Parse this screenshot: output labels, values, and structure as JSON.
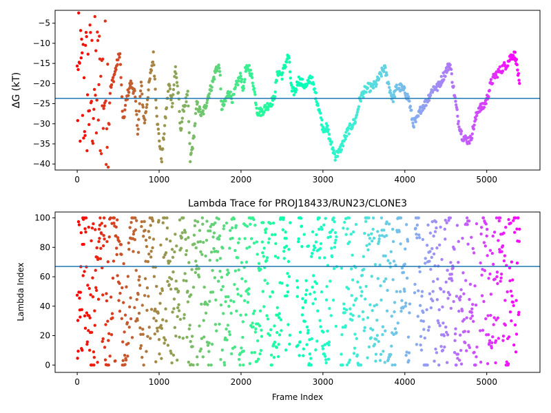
{
  "chart_data": [
    {
      "type": "scatter",
      "title": "",
      "xlabel": "",
      "ylabel": "ΔG (kT)",
      "xlim": [
        -270,
        5650
      ],
      "ylim": [
        -41.5,
        -1.8
      ],
      "xticks": [
        0,
        1000,
        2000,
        3000,
        4000,
        5000
      ],
      "xtick_labels": [
        "0",
        "1000",
        "2000",
        "3000",
        "4000",
        "5000"
      ],
      "yticks": [
        -40,
        -35,
        -30,
        -25,
        -20,
        -15,
        -10,
        -5
      ],
      "ytick_labels": [
        "−40",
        "−35",
        "−30",
        "−25",
        "−20",
        "−15",
        "−10",
        "−5"
      ],
      "hline": -23.7,
      "colormap": "rainbow (early frames red → late frames violet)",
      "frame_count": 5400,
      "trace_points": [
        [
          0,
          -20
        ],
        [
          20,
          -12
        ],
        [
          40,
          -28
        ],
        [
          60,
          -8
        ],
        [
          80,
          -18
        ],
        [
          100,
          -35
        ],
        [
          120,
          -5
        ],
        [
          140,
          -25
        ],
        [
          160,
          -15
        ],
        [
          180,
          -38
        ],
        [
          200,
          -10
        ],
        [
          220,
          -22
        ],
        [
          240,
          -30
        ],
        [
          260,
          -12
        ],
        [
          280,
          -6
        ],
        [
          300,
          -18
        ],
        [
          320,
          -28
        ],
        [
          340,
          -35
        ],
        [
          360,
          -22
        ],
        [
          380,
          -18
        ],
        [
          400,
          -22
        ],
        [
          450,
          -18
        ],
        [
          500,
          -14
        ],
        [
          520,
          -12
        ],
        [
          560,
          -30
        ],
        [
          600,
          -24
        ],
        [
          650,
          -20
        ],
        [
          700,
          -22
        ],
        [
          740,
          -32
        ],
        [
          780,
          -20
        ],
        [
          820,
          -30
        ],
        [
          880,
          -20
        ],
        [
          930,
          -13
        ],
        [
          980,
          -30
        ],
        [
          1030,
          -39
        ],
        [
          1080,
          -28
        ],
        [
          1120,
          -20
        ],
        [
          1160,
          -25
        ],
        [
          1200,
          -16
        ],
        [
          1240,
          -24
        ],
        [
          1260,
          -32
        ],
        [
          1300,
          -26
        ],
        [
          1350,
          -23
        ],
        [
          1380,
          -39
        ],
        [
          1420,
          -34
        ],
        [
          1460,
          -25
        ],
        [
          1520,
          -28
        ],
        [
          1560,
          -26
        ],
        [
          1600,
          -23
        ],
        [
          1650,
          -20
        ],
        [
          1700,
          -16
        ],
        [
          1740,
          -16
        ],
        [
          1760,
          -26
        ],
        [
          1800,
          -25
        ],
        [
          1850,
          -22
        ],
        [
          1900,
          -24
        ],
        [
          1950,
          -20
        ],
        [
          2000,
          -18
        ],
        [
          2030,
          -22
        ],
        [
          2050,
          -17
        ],
        [
          2100,
          -16
        ],
        [
          2150,
          -20
        ],
        [
          2200,
          -27
        ],
        [
          2250,
          -27
        ],
        [
          2300,
          -26
        ],
        [
          2400,
          -24
        ],
        [
          2450,
          -17
        ],
        [
          2500,
          -18
        ],
        [
          2560,
          -14
        ],
        [
          2580,
          -13
        ],
        [
          2620,
          -22
        ],
        [
          2660,
          -22
        ],
        [
          2700,
          -19
        ],
        [
          2750,
          -20
        ],
        [
          2800,
          -21
        ],
        [
          2850,
          -18
        ],
        [
          2900,
          -22
        ],
        [
          2950,
          -26
        ],
        [
          3000,
          -31
        ],
        [
          3050,
          -31
        ],
        [
          3100,
          -35
        ],
        [
          3150,
          -38
        ],
        [
          3200,
          -37
        ],
        [
          3300,
          -32
        ],
        [
          3400,
          -29
        ],
        [
          3450,
          -24
        ],
        [
          3500,
          -22
        ],
        [
          3550,
          -21
        ],
        [
          3600,
          -21
        ],
        [
          3650,
          -20
        ],
        [
          3700,
          -18
        ],
        [
          3750,
          -16
        ],
        [
          3800,
          -20
        ],
        [
          3850,
          -24
        ],
        [
          3900,
          -21
        ],
        [
          3950,
          -21
        ],
        [
          4000,
          -22
        ],
        [
          4050,
          -24
        ],
        [
          4100,
          -30
        ],
        [
          4150,
          -29
        ],
        [
          4200,
          -26
        ],
        [
          4250,
          -25
        ],
        [
          4300,
          -23
        ],
        [
          4350,
          -21
        ],
        [
          4400,
          -21
        ],
        [
          4450,
          -19
        ],
        [
          4500,
          -17
        ],
        [
          4550,
          -15
        ],
        [
          4600,
          -22
        ],
        [
          4650,
          -29
        ],
        [
          4700,
          -33
        ],
        [
          4750,
          -34
        ],
        [
          4800,
          -34
        ],
        [
          4850,
          -30
        ],
        [
          4900,
          -26
        ],
        [
          4950,
          -26
        ],
        [
          5000,
          -24
        ],
        [
          5050,
          -20
        ],
        [
          5100,
          -18
        ],
        [
          5150,
          -17
        ],
        [
          5200,
          -16
        ],
        [
          5250,
          -15
        ],
        [
          5300,
          -13
        ],
        [
          5350,
          -13
        ],
        [
          5380,
          -17
        ],
        [
          5400,
          -21
        ]
      ]
    },
    {
      "type": "scatter",
      "title": "Lambda Trace for PROJ18433/RUN23/CLONE3",
      "xlabel": "Frame Index",
      "ylabel": "Lambda Index",
      "xlim": [
        -270,
        5650
      ],
      "ylim": [
        -5,
        104
      ],
      "xticks": [
        0,
        1000,
        2000,
        3000,
        4000,
        5000
      ],
      "xtick_labels": [
        "0",
        "1000",
        "2000",
        "3000",
        "4000",
        "5000"
      ],
      "yticks": [
        0,
        20,
        40,
        60,
        80,
        100
      ],
      "ytick_labels": [
        "0",
        "20",
        "40",
        "60",
        "80",
        "100"
      ],
      "hline": 67,
      "colormap": "rainbow (early frames red → late frames violet)",
      "frame_count": 5400,
      "value_range": [
        0,
        100
      ]
    }
  ]
}
